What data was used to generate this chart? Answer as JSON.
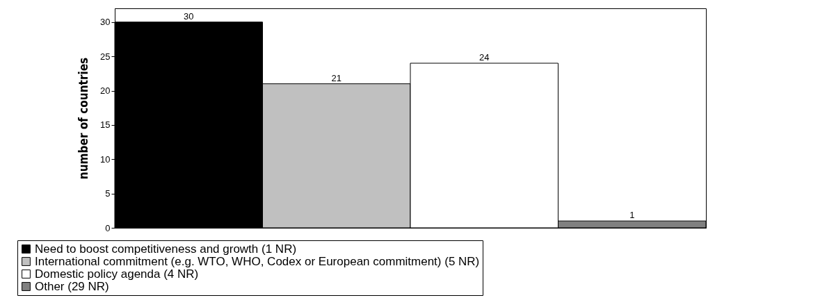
{
  "chart_data": {
    "type": "bar",
    "ylabel": "number of countries",
    "categories": [
      null
    ],
    "series": [
      {
        "name": "Need to boost competitiveness and growth (1 NR)",
        "color": "#000000",
        "values": [
          30
        ]
      },
      {
        "name": "International commitment (e.g. WTO, WHO, Codex or European commitment) (5 NR)",
        "color": "#c0c0c0",
        "values": [
          21
        ]
      },
      {
        "name": "Domestic policy agenda (4 NR)",
        "color": "#ffffff",
        "values": [
          24
        ]
      },
      {
        "name": "Other (29 NR)",
        "color": "#808080",
        "values": [
          1
        ]
      }
    ],
    "ylim": [
      0,
      32
    ],
    "yticks": [
      0,
      5,
      10,
      15,
      20,
      25,
      30
    ],
    "data_labels": true,
    "legend": "bottom",
    "grid": false
  }
}
